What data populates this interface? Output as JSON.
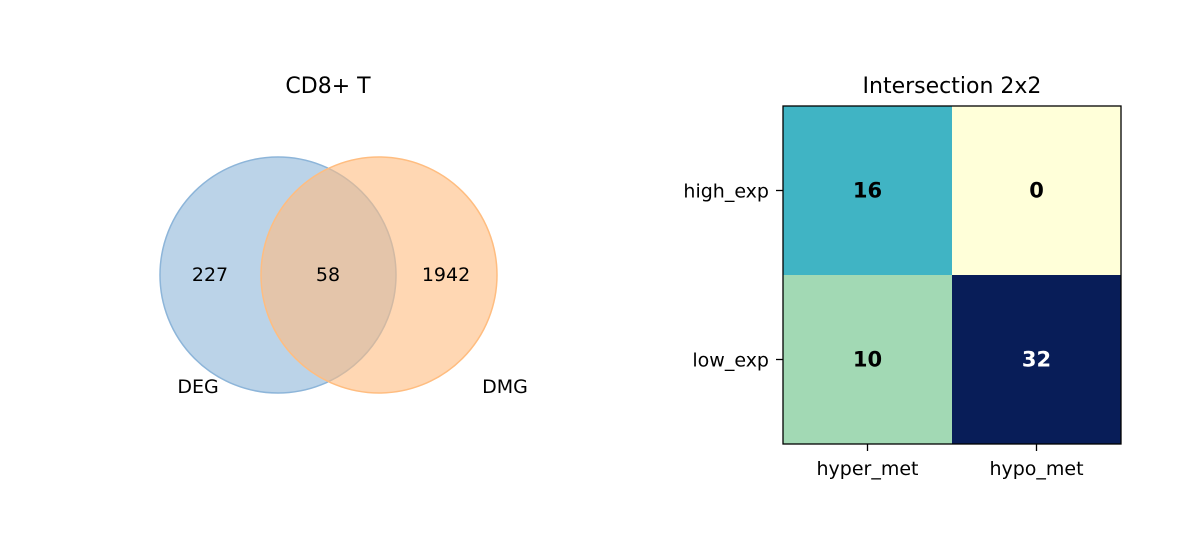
{
  "chart_data": [
    {
      "type": "venn",
      "title": "CD8+ T",
      "sets": [
        {
          "name": "DEG",
          "only": 227,
          "color": "#8db5d9"
        },
        {
          "name": "DMG",
          "only": 1942,
          "color": "#ffbd80"
        }
      ],
      "intersection": 58
    },
    {
      "type": "heatmap",
      "title": "Intersection 2x2",
      "x_labels": [
        "hyper_met",
        "hypo_met"
      ],
      "y_labels": [
        "high_exp",
        "low_exp"
      ],
      "values": [
        [
          16,
          0
        ],
        [
          10,
          32
        ]
      ],
      "colormap": "YlGnBu",
      "cell_colors": [
        [
          "#40b4c4",
          "#ffffd9"
        ],
        [
          "#a2d9b4",
          "#081d58"
        ]
      ],
      "text_colors": [
        [
          "#000000",
          "#000000"
        ],
        [
          "#000000",
          "#ffffff"
        ]
      ]
    }
  ]
}
